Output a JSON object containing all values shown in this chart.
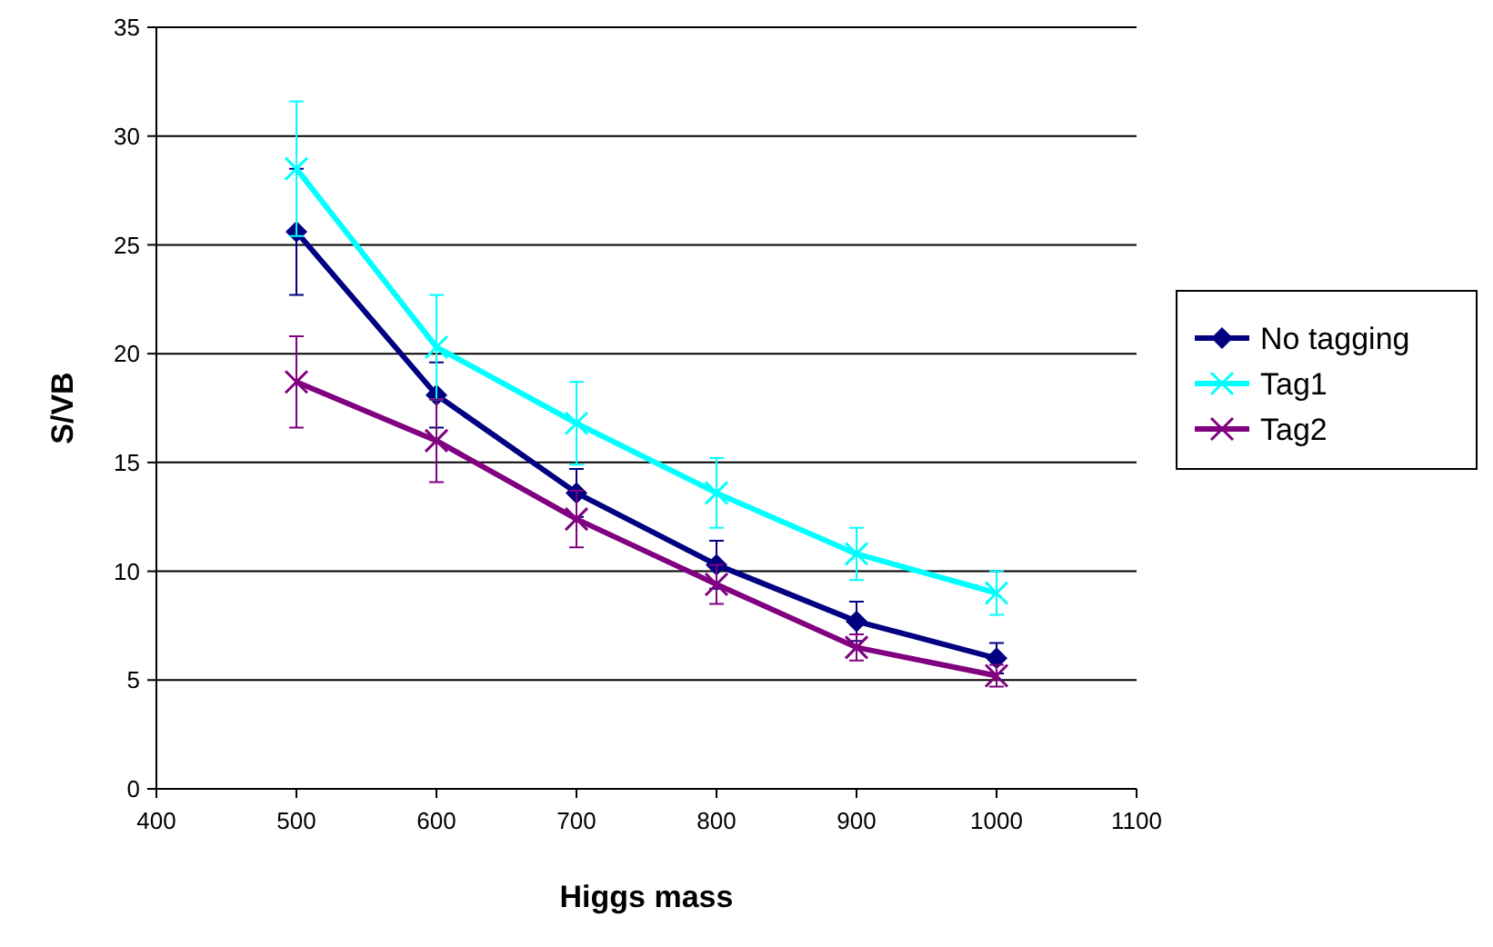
{
  "chart_data": {
    "type": "line",
    "xlabel": "Higgs mass",
    "ylabel": "S/VB",
    "x": [
      500,
      600,
      700,
      800,
      900,
      1000
    ],
    "series": [
      {
        "name": "No tagging",
        "color": "#000080",
        "marker": "diamond",
        "values": [
          25.6,
          18.1,
          13.6,
          10.3,
          7.7,
          6.0
        ],
        "errors": [
          2.9,
          1.5,
          1.1,
          1.1,
          0.9,
          0.7
        ]
      },
      {
        "name": "Tag1",
        "color": "#00ffff",
        "marker": "cross",
        "values": [
          28.5,
          20.3,
          16.8,
          13.6,
          10.8,
          9.0
        ],
        "errors": [
          3.1,
          2.4,
          1.9,
          1.6,
          1.2,
          1.0
        ]
      },
      {
        "name": "Tag2",
        "color": "#800080",
        "marker": "cross",
        "values": [
          18.7,
          16.0,
          12.4,
          9.4,
          6.5,
          5.2
        ],
        "errors": [
          2.1,
          1.9,
          1.3,
          0.9,
          0.6,
          0.5
        ]
      }
    ],
    "xlim": [
      400,
      1100
    ],
    "xticks": [
      400,
      500,
      600,
      700,
      800,
      900,
      1000,
      1100
    ],
    "ylim": [
      0,
      35
    ],
    "yticks": [
      0,
      5,
      10,
      15,
      20,
      25,
      30,
      35
    ],
    "grid": "y",
    "legend": "right"
  }
}
